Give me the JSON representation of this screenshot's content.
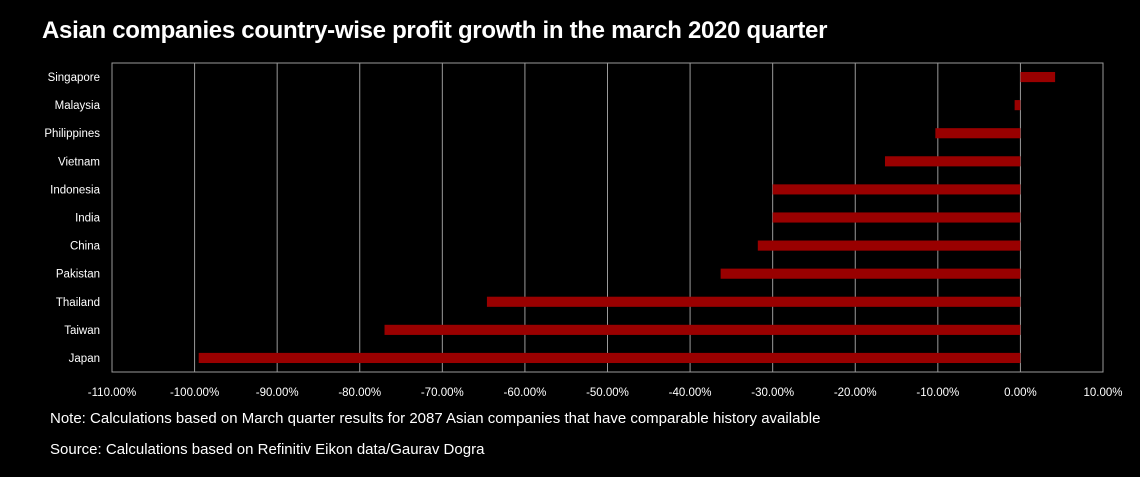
{
  "header": {
    "title": "Asian companies country-wise profit growth in the march 2020 quarter"
  },
  "footer": {
    "note": "Note: Calculations based on March quarter results for 2087 Asian companies that have comparable history available",
    "source": "Source: Calculations based on Refinitiv Eikon data/Gaurav Dogra"
  },
  "colors": {
    "bar": "#990000",
    "background": "#000000",
    "grid": "#9a9a9a",
    "text": "#ffffff"
  },
  "chart_data": {
    "type": "bar",
    "orientation": "horizontal",
    "title": "Asian companies country-wise profit growth in the march 2020 quarter",
    "xlabel": "",
    "ylabel": "",
    "categories": [
      "Singapore",
      "Malaysia",
      "Philippines",
      "Vietnam",
      "Indonesia",
      "India",
      "China",
      "Pakistan",
      "Thailand",
      "Taiwan",
      "Japan"
    ],
    "values": [
      4.2,
      -0.7,
      -10.3,
      -16.4,
      -30.0,
      -30.0,
      -31.8,
      -36.3,
      -64.6,
      -77.0,
      -99.5
    ],
    "value_unit": "%",
    "xlim": [
      -110,
      10
    ],
    "xticks": [
      -110,
      -100,
      -90,
      -80,
      -70,
      -60,
      -50,
      -40,
      -30,
      -20,
      -10,
      0,
      10
    ],
    "xtick_labels": [
      "-110.00%",
      "-100.00%",
      "-90.00%",
      "-80.00%",
      "-70.00%",
      "-60.00%",
      "-50.00%",
      "-40.00%",
      "-30.00%",
      "-20.00%",
      "-10.00%",
      "0.00%",
      "10.00%"
    ],
    "grid": true,
    "legend": "none"
  }
}
